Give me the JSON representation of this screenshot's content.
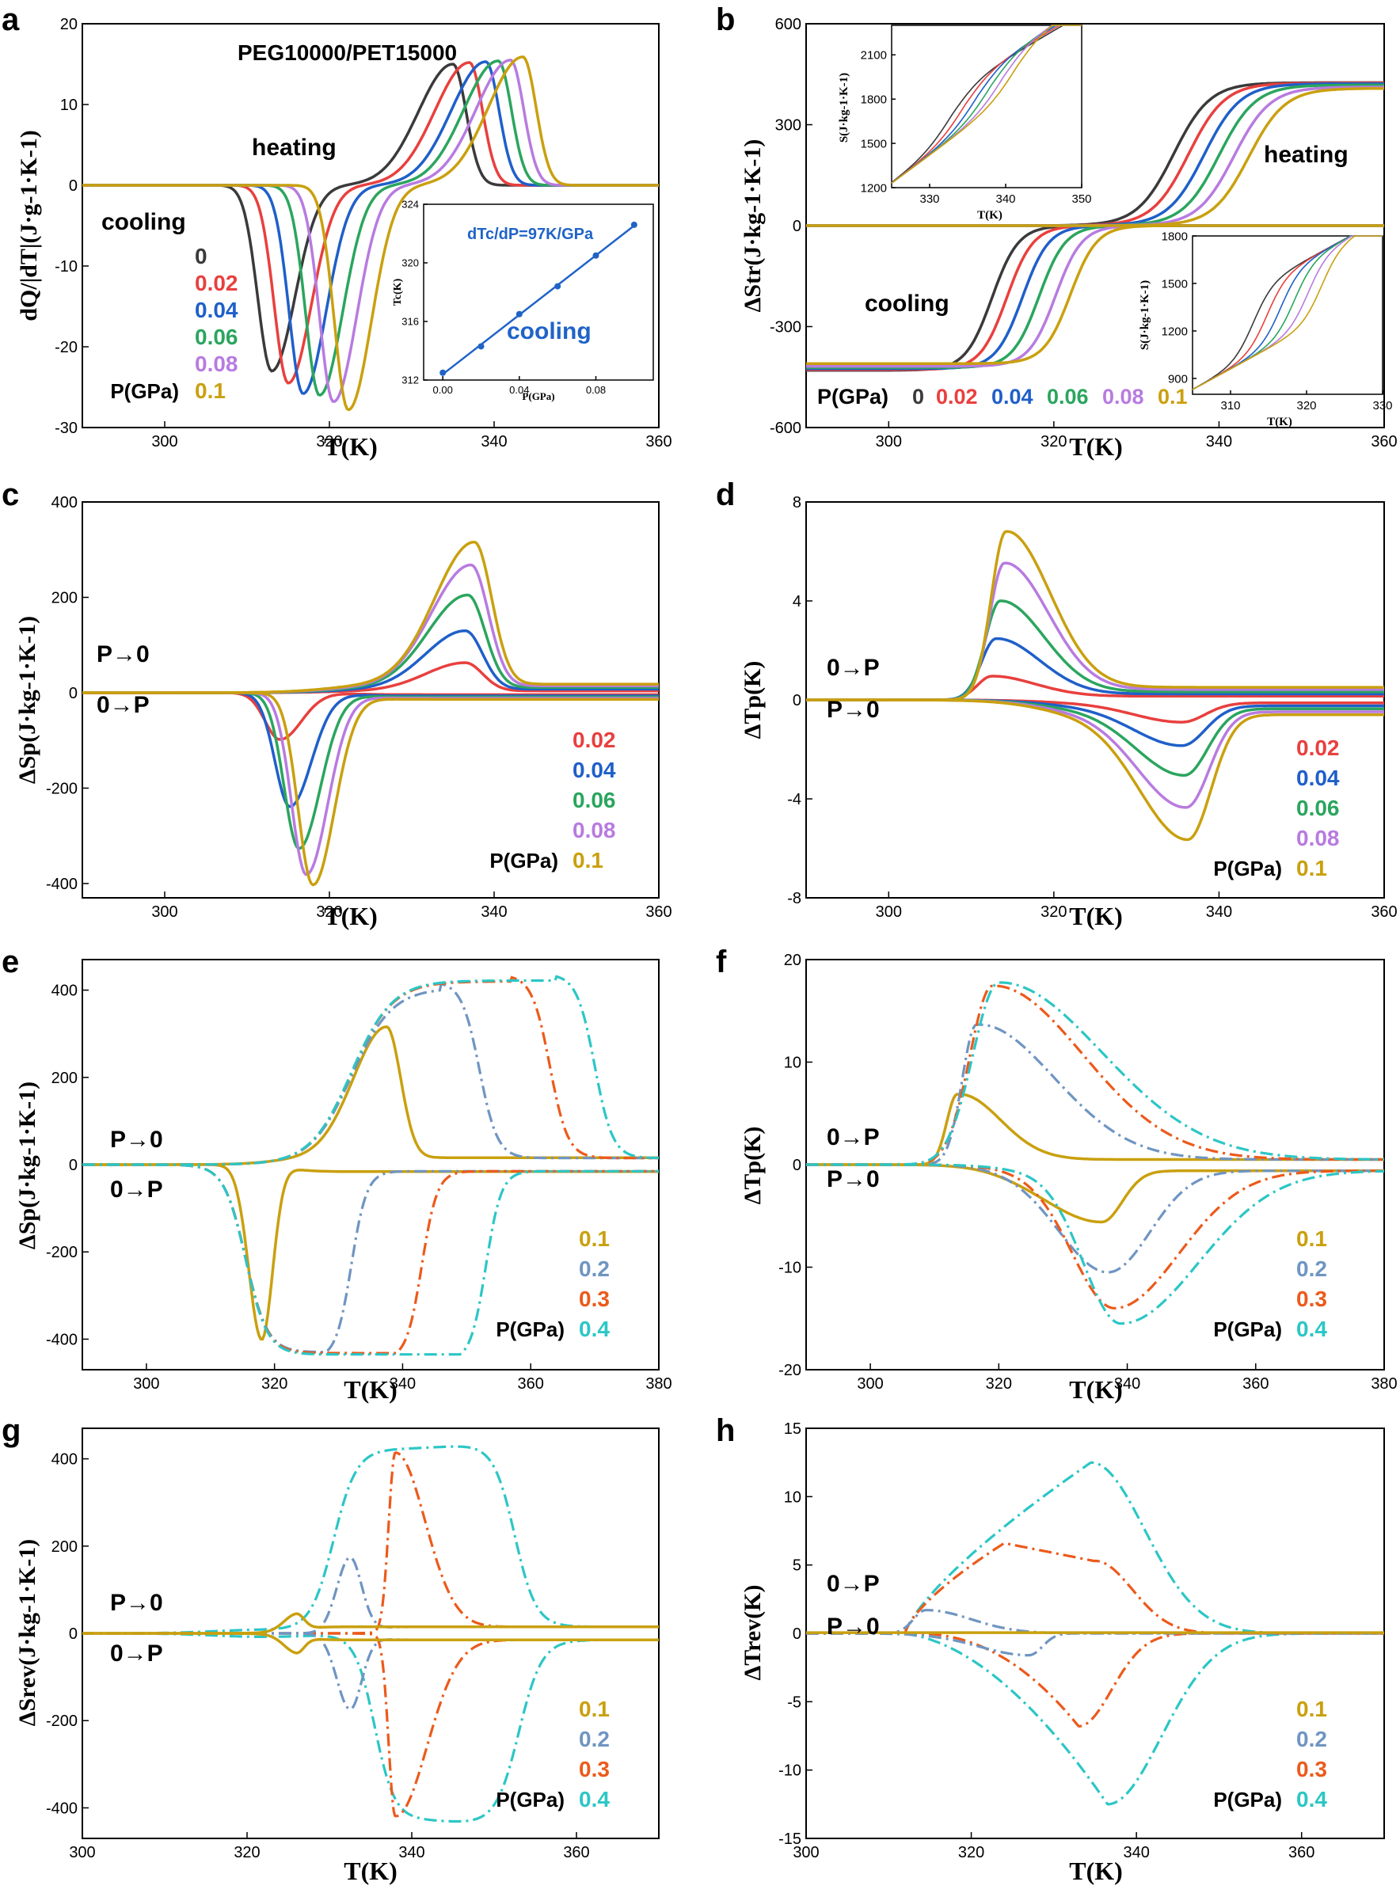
{
  "figure": {
    "colors": {
      "p0": "#3a3a3a",
      "p002": "#e8403e",
      "p004": "#1f5fc9",
      "p006": "#2ba55e",
      "p008": "#b87be0",
      "p01": "#c9a00f",
      "p02": "#6f95c2",
      "p03": "#ec5a1b",
      "p04": "#2cc6c6",
      "inset_line": "#1f63c7"
    }
  },
  "chart_data": [
    {
      "panel": "a",
      "type": "line",
      "title": "PEG10000/PET15000",
      "xlabel": "T(K)",
      "ylabel": "dQ/|dT|(J·g-1·K-1)",
      "xlim": [
        290,
        360
      ],
      "ylim": [
        -30,
        20
      ],
      "xticks": [
        300,
        320,
        340,
        360
      ],
      "yticks": [
        -30,
        -20,
        -10,
        0,
        10,
        20
      ],
      "annotations": [
        "heating",
        "cooling"
      ],
      "legend_title": "P(GPa)",
      "legend": [
        "0",
        "0.02",
        "0.04",
        "0.06",
        "0.08",
        "0.1"
      ],
      "series": [
        {
          "name": "0",
          "heating_peak": [
            335,
            15.0
          ],
          "cooling_peak": [
            313,
            -23.0
          ]
        },
        {
          "name": "0.02",
          "heating_peak": [
            337,
            15.2
          ],
          "cooling_peak": [
            315,
            -24.5
          ]
        },
        {
          "name": "0.04",
          "heating_peak": [
            339,
            15.3
          ],
          "cooling_peak": [
            316.8,
            -25.8
          ]
        },
        {
          "name": "0.06",
          "heating_peak": [
            340.5,
            15.4
          ],
          "cooling_peak": [
            318.8,
            -26.0
          ]
        },
        {
          "name": "0.08",
          "heating_peak": [
            342,
            15.5
          ],
          "cooling_peak": [
            320.5,
            -26.8
          ]
        },
        {
          "name": "0.1",
          "heating_peak": [
            343.5,
            15.9
          ],
          "cooling_peak": [
            322.3,
            -27.8
          ]
        }
      ],
      "inset": {
        "annotation": "dTc/dP=97K/GPa",
        "label": "cooling",
        "xlabel": "P(GPa)",
        "ylabel": "Tc(K)",
        "xlim": [
          -0.01,
          0.11
        ],
        "ylim": [
          312,
          324
        ],
        "xticks": [
          "0.00",
          "0.04",
          "0.08"
        ],
        "yticks": [
          "312",
          "316",
          "320",
          "324"
        ],
        "x": [
          0,
          0.02,
          0.04,
          0.06,
          0.08,
          0.1
        ],
        "y": [
          312.5,
          314.3,
          316.5,
          318.4,
          320.5,
          322.6
        ]
      }
    },
    {
      "panel": "b",
      "type": "line",
      "xlabel": "T(K)",
      "ylabel": "ΔStr(J·kg-1·K-1)",
      "xlim": [
        290,
        360
      ],
      "ylim": [
        -600,
        600
      ],
      "xticks": [
        300,
        320,
        340,
        360
      ],
      "yticks": [
        -600,
        -300,
        0,
        300,
        600
      ],
      "annotations": [
        "heating",
        "cooling"
      ],
      "legend_title": "P(GPa)",
      "legend": [
        "0",
        "0.02",
        "0.04",
        "0.06",
        "0.08",
        "0.1"
      ],
      "series": [
        {
          "name": "0",
          "heating_mid": 334.5,
          "heating_top": 425,
          "cooling_mid": 312.5,
          "cooling_bottom": -430
        },
        {
          "name": "0.02",
          "heating_mid": 336.3,
          "heating_top": 424,
          "cooling_mid": 314.3,
          "cooling_bottom": -428
        },
        {
          "name": "0.04",
          "heating_mid": 338.2,
          "heating_top": 422,
          "cooling_mid": 316.2,
          "cooling_bottom": -425
        },
        {
          "name": "0.06",
          "heating_mid": 340.0,
          "heating_top": 418,
          "cooling_mid": 318.2,
          "cooling_bottom": -422
        },
        {
          "name": "0.08",
          "heating_mid": 341.8,
          "heating_top": 412,
          "cooling_mid": 320.2,
          "cooling_bottom": -418
        },
        {
          "name": "0.1",
          "heating_mid": 343.6,
          "heating_top": 408,
          "cooling_mid": 322.0,
          "cooling_bottom": -410
        }
      ],
      "inset_top": {
        "xlabel": "T(K)",
        "ylabel": "S(J·kg-1·K-1)",
        "xlim": [
          325,
          350
        ],
        "ylim": [
          1200,
          2300
        ],
        "xticks": [
          "330",
          "340",
          "350"
        ],
        "yticks": [
          "1200",
          "1500",
          "1800",
          "2100"
        ]
      },
      "inset_bottom": {
        "xlabel": "T(K)",
        "ylabel": "S(J·kg-1·K-1)",
        "xlim": [
          305,
          330
        ],
        "ylim": [
          800,
          1800
        ],
        "xticks": [
          "310",
          "320",
          "330"
        ],
        "yticks": [
          "900",
          "1200",
          "1500",
          "1800"
        ]
      }
    },
    {
      "panel": "c",
      "type": "line",
      "xlabel": "T(K)",
      "ylabel": "ΔSp(J·kg-1·K-1)",
      "xlim": [
        290,
        360
      ],
      "ylim": [
        -430,
        400
      ],
      "xticks": [
        300,
        320,
        340,
        360
      ],
      "yticks": [
        -400,
        -200,
        0,
        200,
        400
      ],
      "annotations": [
        "P→0",
        "0→P"
      ],
      "legend_title": "P(GPa)",
      "legend": [
        "0.02",
        "0.04",
        "0.06",
        "0.08",
        "0.1"
      ],
      "series": [
        {
          "name": "0.02",
          "pos_peak": [
            336.5,
            63
          ],
          "neg_peak": [
            314,
            -102
          ]
        },
        {
          "name": "0.04",
          "pos_peak": [
            336.5,
            130
          ],
          "neg_peak": [
            315.2,
            -245
          ]
        },
        {
          "name": "0.06",
          "pos_peak": [
            336.8,
            205
          ],
          "neg_peak": [
            316.3,
            -335
          ]
        },
        {
          "name": "0.08",
          "pos_peak": [
            337.2,
            268
          ],
          "neg_peak": [
            317.2,
            -392
          ]
        },
        {
          "name": "0.1",
          "pos_peak": [
            337.6,
            316
          ],
          "neg_peak": [
            318,
            -415
          ]
        }
      ]
    },
    {
      "panel": "d",
      "type": "line",
      "xlabel": "T(K)",
      "ylabel": "ΔTp(K)",
      "xlim": [
        290,
        360
      ],
      "ylim": [
        -8,
        8
      ],
      "xticks": [
        300,
        320,
        340,
        360
      ],
      "yticks": [
        -8,
        -4,
        0,
        4,
        8
      ],
      "annotations": [
        "0→P",
        "P→0"
      ],
      "legend_title": "P(GPa)",
      "legend": [
        "0.02",
        "0.04",
        "0.06",
        "0.08",
        "0.1"
      ],
      "series": [
        {
          "name": "0.02",
          "pos_peak": [
            312.5,
            1.1
          ],
          "neg_peak": [
            335.5,
            -0.9
          ]
        },
        {
          "name": "0.04",
          "pos_peak": [
            313,
            2.7
          ],
          "neg_peak": [
            335.5,
            -1.85
          ]
        },
        {
          "name": "0.06",
          "pos_peak": [
            313.5,
            4.3
          ],
          "neg_peak": [
            335.8,
            -3.05
          ]
        },
        {
          "name": "0.08",
          "pos_peak": [
            314,
            5.9
          ],
          "neg_peak": [
            336,
            -4.35
          ]
        },
        {
          "name": "0.1",
          "pos_peak": [
            314.2,
            7.25
          ],
          "neg_peak": [
            336.2,
            -5.65
          ]
        }
      ]
    },
    {
      "panel": "e",
      "type": "line",
      "xlabel": "T(K)",
      "ylabel": "ΔSp(J·kg-1·K-1)",
      "xlim": [
        290,
        380
      ],
      "ylim": [
        -470,
        470
      ],
      "xticks": [
        300,
        320,
        340,
        360,
        380
      ],
      "yticks": [
        -400,
        -200,
        0,
        200,
        400
      ],
      "annotations": [
        "P→0",
        "0→P"
      ],
      "legend_title": "P(GPa)",
      "legend": [
        "0.1",
        "0.2",
        "0.3",
        "0.4"
      ],
      "series": [
        {
          "name": "0.1",
          "pos_peak": [
            337.5,
            316
          ],
          "neg_peak": [
            318,
            -415
          ]
        },
        {
          "name": "0.2",
          "pos_plateau": 405,
          "pos_end": 352,
          "neg_plateau": -430,
          "neg_end": 332
        },
        {
          "name": "0.3",
          "pos_plateau": 420,
          "pos_end": 363,
          "neg_plateau": -432,
          "neg_end": 343
        },
        {
          "name": "0.4",
          "pos_plateau": 422,
          "pos_end": 370,
          "neg_plateau": -435,
          "neg_end": 353
        }
      ]
    },
    {
      "panel": "f",
      "type": "line",
      "xlabel": "T(K)",
      "ylabel": "ΔTp(K)",
      "xlim": [
        290,
        380
      ],
      "ylim": [
        -20,
        20
      ],
      "xticks": [
        300,
        320,
        340,
        360,
        380
      ],
      "yticks": [
        -20,
        -10,
        0,
        10,
        20
      ],
      "annotations": [
        "0→P",
        "P→0"
      ],
      "legend_title": "P(GPa)",
      "legend": [
        "0.1",
        "0.2",
        "0.3",
        "0.4"
      ],
      "series": [
        {
          "name": "0.1",
          "pos_peak": [
            313.5,
            7.2
          ],
          "neg_peak": [
            336,
            -5.6
          ]
        },
        {
          "name": "0.2",
          "pos_peak": [
            316.5,
            13.8
          ],
          "neg_peak": [
            337,
            -10.5
          ]
        },
        {
          "name": "0.3",
          "pos_peak": [
            319,
            17.5
          ],
          "neg_peak": [
            338,
            -14.0
          ]
        },
        {
          "name": "0.4",
          "pos_peak": [
            320,
            17.8
          ],
          "neg_peak": [
            339,
            -15.5
          ]
        }
      ]
    },
    {
      "panel": "g",
      "type": "line",
      "xlabel": "T(K)",
      "ylabel": "ΔSrev(J·kg-1·K-1)",
      "xlim": [
        300,
        370
      ],
      "ylim": [
        -470,
        470
      ],
      "xticks": [
        300,
        320,
        340,
        360
      ],
      "yticks": [
        -400,
        -200,
        0,
        200,
        400
      ],
      "annotations": [
        "P→0",
        "0→P"
      ],
      "legend_title": "P(GPa)",
      "legend": [
        "0.1",
        "0.2",
        "0.3",
        "0.4"
      ],
      "series": [
        {
          "name": "0.1",
          "pos_peak": [
            326,
            35
          ],
          "neg_peak": [
            326,
            -35
          ]
        },
        {
          "name": "0.2",
          "pos_peak": [
            332.5,
            170
          ],
          "neg_peak": [
            332.5,
            -170
          ]
        },
        {
          "name": "0.3",
          "pos_peak": [
            338,
            410
          ],
          "neg_peak": [
            338,
            -415
          ]
        },
        {
          "name": "0.4",
          "pos_plateau": 422,
          "neg_plateau": -425
        }
      ]
    },
    {
      "panel": "h",
      "type": "line",
      "xlabel": "T(K)",
      "ylabel": "ΔTrev(K)",
      "xlim": [
        300,
        370
      ],
      "ylim": [
        -15,
        15
      ],
      "xticks": [
        300,
        320,
        340,
        360
      ],
      "yticks": [
        -15,
        -10,
        -5,
        0,
        5,
        10,
        15
      ],
      "annotations": [
        "0→P",
        "P→0"
      ],
      "legend_title": "P(GPa)",
      "legend": [
        "0.1",
        "0.2",
        "0.3",
        "0.4"
      ],
      "series": [
        {
          "name": "0.1",
          "pos_peak": [
            320,
            0.1
          ],
          "neg_peak": [
            330,
            -0.1
          ]
        },
        {
          "name": "0.2",
          "pos_peak": [
            314.5,
            1.7
          ],
          "neg_peak": [
            327,
            -1.6
          ]
        },
        {
          "name": "0.3",
          "pos_peak": [
            324,
            6.6
          ],
          "neg_peak": [
            333,
            -6.8
          ]
        },
        {
          "name": "0.4",
          "pos_peak": [
            334.5,
            12.5
          ],
          "neg_peak": [
            336.5,
            -12.5
          ]
        }
      ]
    }
  ]
}
